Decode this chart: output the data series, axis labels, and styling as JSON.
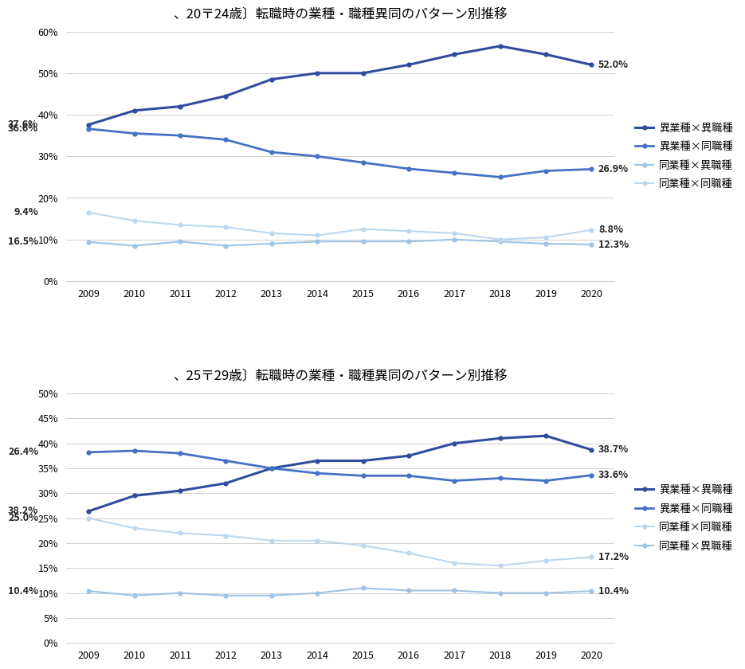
{
  "chart1": {
    "title": "、20〒24歳〕転職時の業種・職種異同のパターン別推移",
    "years": [
      2009,
      2010,
      2011,
      2012,
      2013,
      2014,
      2015,
      2016,
      2017,
      2018,
      2019,
      2020
    ],
    "series": [
      {
        "label": "異業種×異職種",
        "color": "#2e4d9e",
        "values": [
          37.6,
          41.0,
          42.0,
          44.5,
          48.5,
          50.0,
          50.0,
          52.0,
          54.5,
          56.5,
          54.5,
          52.0
        ],
        "linewidth": 2.2
      },
      {
        "label": "異業種×同職種",
        "color": "#4472c4",
        "values": [
          36.6,
          35.5,
          35.0,
          34.0,
          31.0,
          30.0,
          28.5,
          27.0,
          26.0,
          25.0,
          26.5,
          26.9
        ],
        "linewidth": 2.0
      },
      {
        "label": "同業種×異職種",
        "color": "#9dc3e6",
        "values": [
          9.4,
          8.5,
          9.5,
          8.5,
          9.0,
          9.5,
          9.5,
          9.5,
          10.0,
          9.5,
          9.0,
          8.8
        ],
        "linewidth": 1.5
      },
      {
        "label": "同業種×同職種",
        "color": "#bdd7ee",
        "values": [
          16.5,
          14.5,
          13.5,
          13.0,
          11.5,
          11.0,
          12.5,
          12.0,
          11.5,
          10.0,
          10.5,
          12.3
        ],
        "linewidth": 1.5
      }
    ],
    "ylim": [
      0,
      60
    ],
    "yticks": [
      0,
      10,
      20,
      30,
      40,
      50,
      60
    ],
    "ytick_labels": [
      "0%",
      "10%",
      "20%",
      "30%",
      "40%",
      "50%",
      "60%"
    ],
    "first_labels": [
      "37.6%",
      "36.6%",
      "16.5%",
      "9.4%"
    ],
    "last_labels": [
      "52.0%",
      "26.9%",
      "12.3%",
      "8.8%"
    ],
    "first_label_indices": [
      0,
      1,
      3,
      2
    ],
    "last_label_indices": [
      0,
      1,
      3,
      2
    ]
  },
  "chart2": {
    "title": "、25〒29歳〕転職時の業種・職種異同のパターン別推移",
    "years": [
      2009,
      2010,
      2011,
      2012,
      2013,
      2014,
      2015,
      2016,
      2017,
      2018,
      2019,
      2020
    ],
    "series": [
      {
        "label": "異業種×異職種",
        "color": "#2e4d9e",
        "values": [
          26.4,
          29.5,
          30.5,
          32.0,
          35.0,
          36.5,
          36.5,
          37.5,
          40.0,
          41.0,
          41.5,
          38.7
        ],
        "linewidth": 2.2
      },
      {
        "label": "異業種×同職種",
        "color": "#4472c4",
        "values": [
          38.2,
          38.5,
          38.0,
          36.5,
          35.0,
          34.0,
          33.5,
          33.5,
          32.5,
          33.0,
          32.5,
          33.6
        ],
        "linewidth": 2.0
      },
      {
        "label": "同業種×同職種",
        "color": "#bdd7ee",
        "values": [
          25.0,
          23.0,
          22.0,
          21.5,
          20.5,
          20.5,
          19.5,
          18.0,
          16.0,
          15.5,
          16.5,
          17.2
        ],
        "linewidth": 1.5
      },
      {
        "label": "同業種×異職種",
        "color": "#9dc3e6",
        "values": [
          10.4,
          9.5,
          10.0,
          9.5,
          9.5,
          10.0,
          11.0,
          10.5,
          10.5,
          10.0,
          10.0,
          10.4
        ],
        "linewidth": 1.5
      }
    ],
    "ylim": [
      0,
      50
    ],
    "yticks": [
      0,
      5,
      10,
      15,
      20,
      25,
      30,
      35,
      40,
      45,
      50
    ],
    "ytick_labels": [
      "0%",
      "5%",
      "10%",
      "15%",
      "20%",
      "25%",
      "30%",
      "35%",
      "40%",
      "45%",
      "50%"
    ],
    "first_labels": [
      "38.2%",
      "26.4%",
      "25.0%",
      "10.4%"
    ],
    "last_labels": [
      "38.7%",
      "33.6%",
      "17.2%",
      "10.4%"
    ],
    "first_label_indices": [
      1,
      0,
      2,
      3
    ],
    "last_label_indices": [
      0,
      1,
      2,
      3
    ]
  },
  "background_color": "#ffffff",
  "grid_color": "#d0d0d0",
  "font_size": 9,
  "title_fontsize": 12,
  "label_fontsize": 9
}
